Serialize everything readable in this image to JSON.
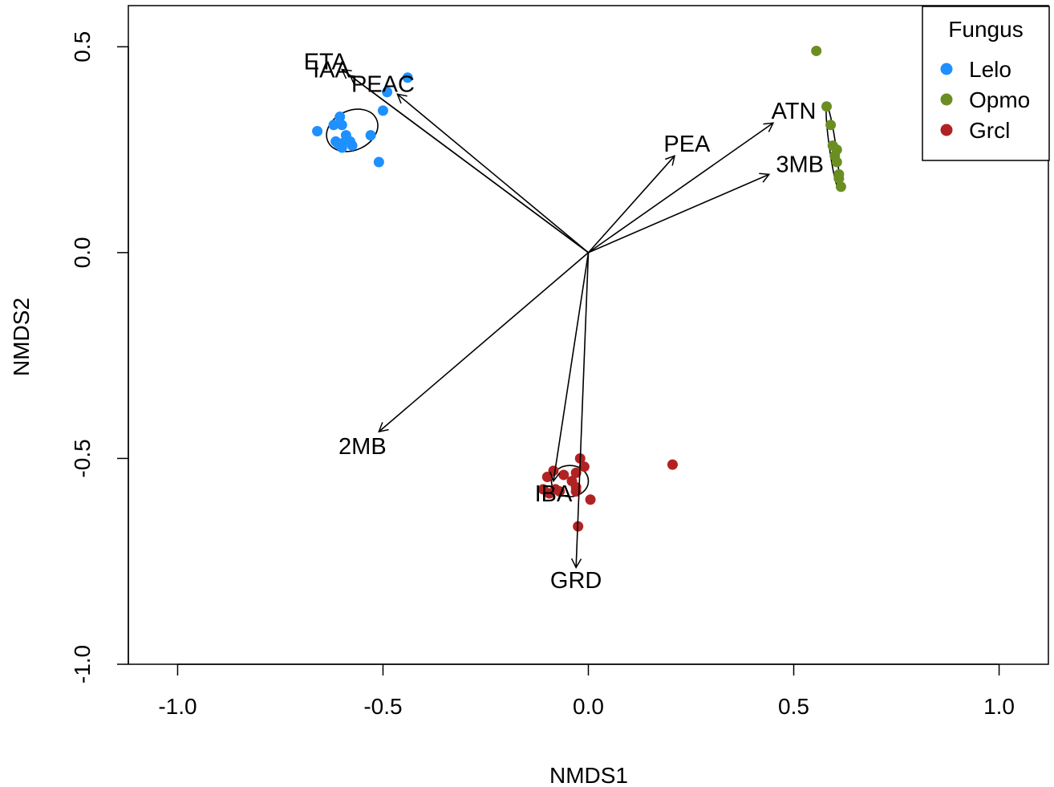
{
  "chart_data": {
    "type": "scatter",
    "xlabel": "NMDS1",
    "ylabel": "NMDS2",
    "xlim": [
      -1.12,
      1.12
    ],
    "ylim": [
      -1.0,
      0.6
    ],
    "xticks": [
      -1.0,
      -0.5,
      0.0,
      0.5,
      1.0
    ],
    "yticks": [
      -1.0,
      -0.5,
      0.0,
      0.5
    ],
    "xtick_labels": [
      "-1.0",
      "-0.5",
      "0.0",
      "0.5",
      "1.0"
    ],
    "ytick_labels": [
      "-1.0",
      "-0.5",
      "0.0",
      "0.5"
    ],
    "grid": false,
    "legend": {
      "title": "Fungus",
      "position": "top-right"
    },
    "series": [
      {
        "name": "Lelo",
        "color": "#1e90ff",
        "points": [
          [
            -0.66,
            0.295
          ],
          [
            -0.62,
            0.31
          ],
          [
            -0.605,
            0.33
          ],
          [
            -0.6,
            0.31
          ],
          [
            -0.615,
            0.27
          ],
          [
            -0.6,
            0.265
          ],
          [
            -0.59,
            0.285
          ],
          [
            -0.58,
            0.27
          ],
          [
            -0.575,
            0.26
          ],
          [
            -0.6,
            0.255
          ],
          [
            -0.61,
            0.265
          ],
          [
            -0.53,
            0.285
          ],
          [
            -0.5,
            0.345
          ],
          [
            -0.49,
            0.39
          ],
          [
            -0.44,
            0.425
          ],
          [
            -0.51,
            0.22
          ]
        ],
        "ellipse": {
          "cx": -0.575,
          "cy": 0.297,
          "rx": 0.065,
          "ry": 0.048,
          "angle_deg": 25
        }
      },
      {
        "name": "Opmo",
        "color": "#6b8e23",
        "points": [
          [
            0.555,
            0.49
          ],
          [
            0.58,
            0.355
          ],
          [
            0.59,
            0.31
          ],
          [
            0.595,
            0.26
          ],
          [
            0.605,
            0.25
          ],
          [
            0.6,
            0.235
          ],
          [
            0.605,
            0.22
          ],
          [
            0.61,
            0.19
          ],
          [
            0.61,
            0.18
          ],
          [
            0.615,
            0.16
          ]
        ],
        "ellipse": {
          "cx": 0.595,
          "cy": 0.255,
          "rx": 0.008,
          "ry": 0.1,
          "angle_deg": 8
        }
      },
      {
        "name": "Grcl",
        "color": "#b22222",
        "points": [
          [
            -0.085,
            -0.53
          ],
          [
            -0.1,
            -0.545
          ],
          [
            -0.06,
            -0.54
          ],
          [
            -0.02,
            -0.5
          ],
          [
            -0.01,
            -0.52
          ],
          [
            -0.03,
            -0.535
          ],
          [
            -0.04,
            -0.555
          ],
          [
            -0.03,
            -0.57
          ],
          [
            -0.03,
            -0.58
          ],
          [
            -0.11,
            -0.575
          ],
          [
            -0.095,
            -0.585
          ],
          [
            -0.08,
            -0.575
          ],
          [
            -0.07,
            -0.58
          ],
          [
            0.005,
            -0.6
          ],
          [
            -0.025,
            -0.665
          ],
          [
            0.205,
            -0.515
          ]
        ],
        "ellipse": {
          "cx": -0.045,
          "cy": -0.555,
          "rx": 0.045,
          "ry": 0.038,
          "angle_deg": 0
        }
      }
    ],
    "vectors": [
      {
        "name": "ETA",
        "x": -0.6,
        "y": 0.445
      },
      {
        "name": "IAA",
        "x": -0.58,
        "y": 0.43
      },
      {
        "name": "PEAC",
        "x": -0.465,
        "y": 0.385
      },
      {
        "name": "PEA",
        "x": 0.21,
        "y": 0.235
      },
      {
        "name": "ATN",
        "x": 0.45,
        "y": 0.315
      },
      {
        "name": "3MB",
        "x": 0.44,
        "y": 0.19
      },
      {
        "name": "2MB",
        "x": -0.51,
        "y": -0.435
      },
      {
        "name": "IBA",
        "x": -0.085,
        "y": -0.555
      },
      {
        "name": "GRD",
        "x": -0.03,
        "y": -0.765
      }
    ],
    "vector_labels": [
      {
        "name": "ETA",
        "x": -0.64,
        "y": 0.465
      },
      {
        "name": "IAA",
        "x": -0.625,
        "y": 0.445
      },
      {
        "name": "PEAC",
        "x": -0.5,
        "y": 0.41
      },
      {
        "name": "PEA",
        "x": 0.24,
        "y": 0.265
      },
      {
        "name": "ATN",
        "x": 0.5,
        "y": 0.345
      },
      {
        "name": "3MB",
        "x": 0.515,
        "y": 0.215
      },
      {
        "name": "2MB",
        "x": -0.55,
        "y": -0.47
      },
      {
        "name": "IBA",
        "x": -0.085,
        "y": -0.585
      },
      {
        "name": "GRD",
        "x": -0.03,
        "y": -0.795
      }
    ]
  }
}
